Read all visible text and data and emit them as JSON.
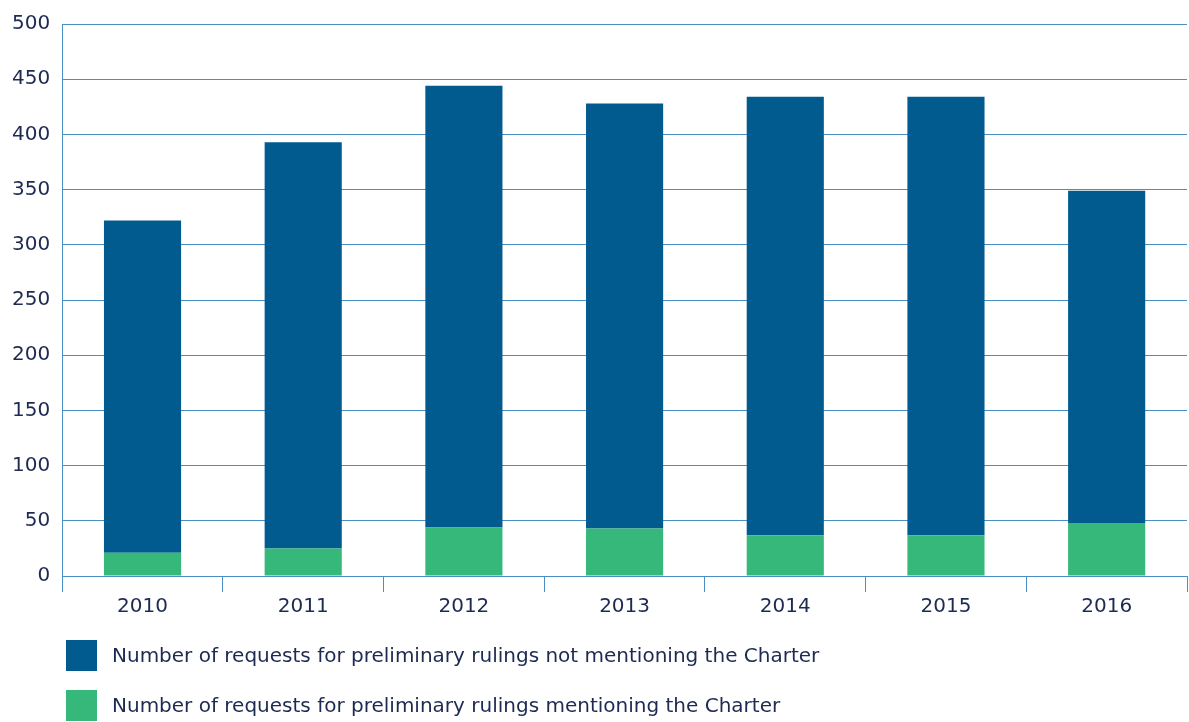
{
  "chart_data": {
    "type": "bar",
    "stacked": true,
    "categories": [
      "2010",
      "2011",
      "2012",
      "2013",
      "2014",
      "2015",
      "2016"
    ],
    "series": [
      {
        "name": "Number of requests for preliminary rulings mentioning the Charter",
        "color": "#36b87a",
        "values": [
          21,
          25,
          44,
          43,
          37,
          37,
          48
        ]
      },
      {
        "name": "Number of requests for preliminary rulings not mentioning the Charter",
        "color": "#025b8f",
        "values": [
          301,
          368,
          400,
          385,
          397,
          397,
          301
        ]
      }
    ],
    "ylim": [
      0,
      500
    ],
    "yticks": [
      0,
      50,
      100,
      150,
      200,
      250,
      300,
      350,
      400,
      450,
      500
    ],
    "grid": "y",
    "legend": "bottom"
  }
}
